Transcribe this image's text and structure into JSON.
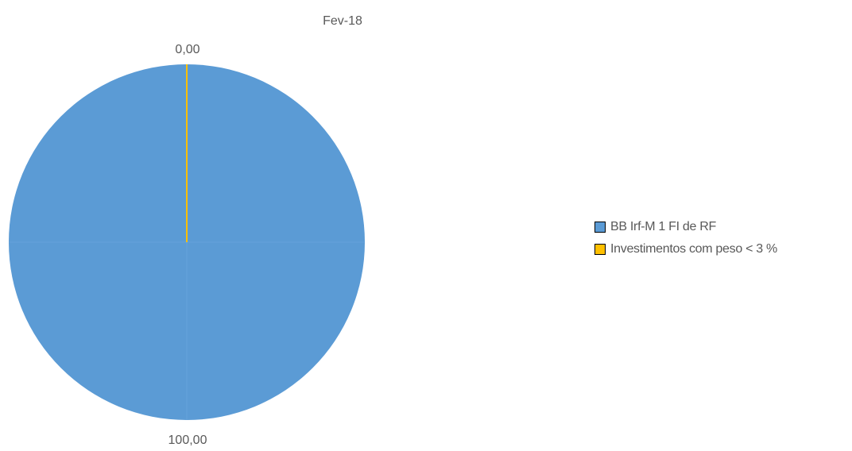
{
  "chart_data": {
    "type": "pie",
    "title": "Fev-18",
    "slices": [
      {
        "label": "BB Irf-M 1 FI de RF",
        "value": 100.0,
        "value_label": "100,00",
        "color": "#5B9BD5"
      },
      {
        "label": "Investimentos com peso < 3 %",
        "value": 0.0,
        "value_label": "0,00",
        "color": "#FFC000"
      }
    ],
    "legend_position": "right"
  }
}
